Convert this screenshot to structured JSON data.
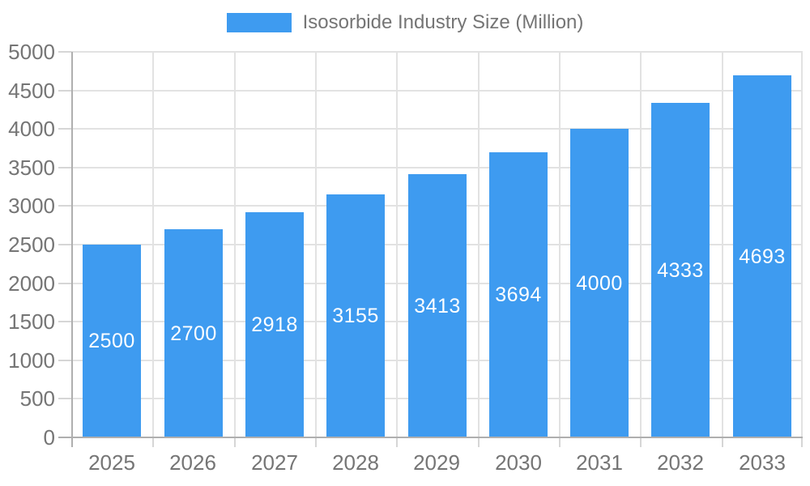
{
  "chart_data": {
    "type": "bar",
    "title": "",
    "xlabel": "",
    "ylabel": "",
    "legend": {
      "label": "Isosorbide Industry Size (Million)",
      "position": "top"
    },
    "categories": [
      "2025",
      "2026",
      "2027",
      "2028",
      "2029",
      "2030",
      "2031",
      "2032",
      "2033"
    ],
    "values": [
      2500,
      2700,
      2918,
      3155,
      3413,
      3694,
      4000,
      4333,
      4693
    ],
    "ylim": [
      0,
      5000
    ],
    "ytick_step": 500,
    "ytick_labels": [
      "0",
      "500",
      "1000",
      "1500",
      "2000",
      "2500",
      "3000",
      "3500",
      "4000",
      "4500",
      "5000"
    ],
    "grid": true,
    "legend_position": "top",
    "colors": {
      "bar": "#3E9BF0",
      "value_label": "#FFFFFF",
      "axis_text": "#757575",
      "legend_text": "#757575",
      "gridline": "#E2E2E2",
      "tick": "#D6D6D6",
      "axis_line": "#AFAFAF",
      "background": "#FFFFFF"
    }
  }
}
